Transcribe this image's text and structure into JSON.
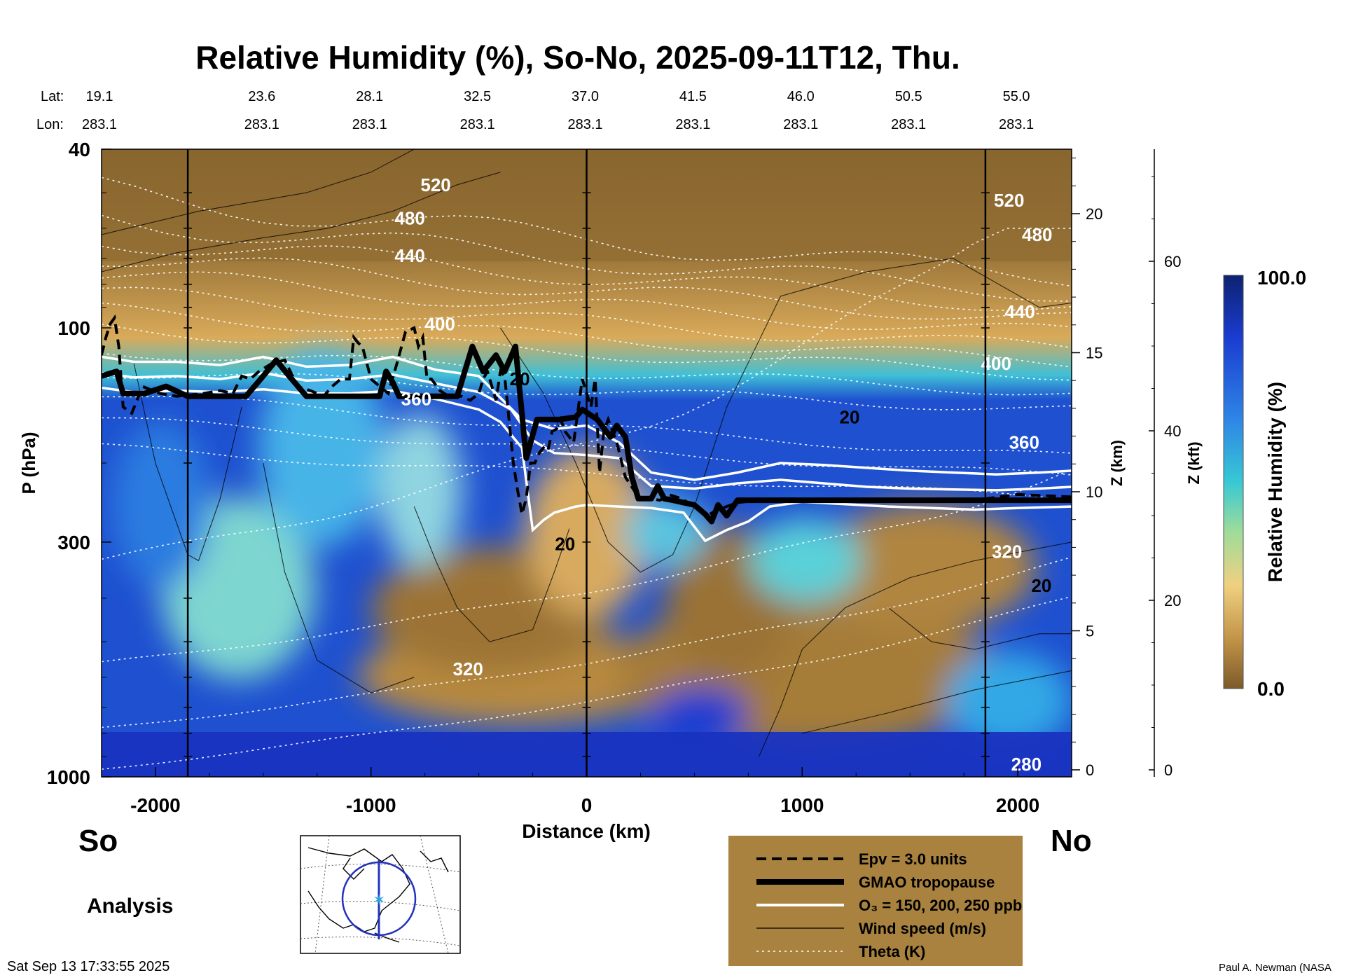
{
  "chart_data": {
    "type": "heatmap",
    "title": "Relative Humidity (%), So-No, 2025-09-11T12, Thu.",
    "xlabel": "Distance (km)",
    "ylabel": "P (hPa)",
    "xlim": [
      -2250,
      2250
    ],
    "ylim": [
      1000,
      40
    ],
    "x_ticks": [
      -2000,
      -1000,
      0,
      1000,
      2000
    ],
    "y_ticks": [
      {
        "value": 1000,
        "label": "1000"
      },
      {
        "value": 300,
        "label": "300"
      },
      {
        "value": 100,
        "label": "100"
      },
      {
        "value": 40,
        "label": "40"
      }
    ],
    "z_km_label": "Z (km)",
    "z_km_ticks": [
      {
        "value": 0,
        "label": "0"
      },
      {
        "value": 5,
        "label": "5"
      },
      {
        "value": 10,
        "label": "10"
      },
      {
        "value": 15,
        "label": "15"
      },
      {
        "value": 20,
        "label": "20"
      }
    ],
    "z_kft_label": "Z (kft)",
    "z_kft_ticks": [
      {
        "value": 0,
        "label": "0"
      },
      {
        "value": 20,
        "label": "20"
      },
      {
        "value": 40,
        "label": "40"
      },
      {
        "value": 60,
        "label": "60"
      }
    ],
    "lat_label": "Lat:",
    "lon_label": "Lon:",
    "stations": [
      {
        "distance": -2000,
        "lat": "19.1",
        "lon": "283.1"
      },
      {
        "distance": -1500,
        "lat": "23.6",
        "lon": "283.1"
      },
      {
        "distance": -1000,
        "lat": "28.1",
        "lon": "283.1"
      },
      {
        "distance": -500,
        "lat": "32.5",
        "lon": "283.1"
      },
      {
        "distance": 0,
        "lat": "37.0",
        "lon": "283.1"
      },
      {
        "distance": 500,
        "lat": "41.5",
        "lon": "283.1"
      },
      {
        "distance": 1000,
        "lat": "46.0",
        "lon": "283.1"
      },
      {
        "distance": 1500,
        "lat": "50.5",
        "lon": "283.1"
      },
      {
        "distance": 2000,
        "lat": "55.0",
        "lon": "283.1"
      }
    ],
    "vertical_lines_km": [
      -1850,
      0,
      1850
    ],
    "colorbar": {
      "label": "Relative Humidity (%)",
      "min": "0.0",
      "max": "100.0"
    },
    "theta_labels": [
      {
        "label": "520",
        "x": -700,
        "p": 48
      },
      {
        "label": "480",
        "x": -820,
        "p": 57
      },
      {
        "label": "440",
        "x": -820,
        "p": 69
      },
      {
        "label": "400",
        "x": -680,
        "p": 98
      },
      {
        "label": "360",
        "x": -790,
        "p": 144
      },
      {
        "label": "320",
        "x": -550,
        "p": 575
      },
      {
        "label": "520",
        "x": 1960,
        "p": 52
      },
      {
        "label": "480",
        "x": 2090,
        "p": 62
      },
      {
        "label": "440",
        "x": 2010,
        "p": 92
      },
      {
        "label": "400",
        "x": 1900,
        "p": 120
      },
      {
        "label": "360",
        "x": 2030,
        "p": 180
      },
      {
        "label": "320",
        "x": 1950,
        "p": 315
      },
      {
        "label": "280",
        "x": 2040,
        "p": 937
      }
    ],
    "wind_labels": [
      {
        "label": "20",
        "x": -310,
        "p": 130
      },
      {
        "label": "20",
        "x": 1220,
        "p": 158
      },
      {
        "label": "20",
        "x": -100,
        "p": 303
      },
      {
        "label": "20",
        "x": 2110,
        "p": 375
      }
    ],
    "tropopause": {
      "x": [
        -2250,
        -2180,
        -2150,
        -2050,
        -1950,
        -1850,
        -1700,
        -1580,
        -1500,
        -1440,
        -1380,
        -1300,
        -1100,
        -960,
        -930,
        -900,
        -870,
        -800,
        -600,
        -530,
        -480,
        -420,
        -380,
        -330,
        -280,
        -230,
        -130,
        -50,
        -20,
        50,
        110,
        140,
        180,
        210,
        240,
        300,
        330,
        360,
        400,
        450,
        500,
        550,
        580,
        610,
        650,
        700,
        800,
        1000,
        1400,
        1800,
        2250
      ],
      "p": [
        128,
        125,
        140,
        140,
        135,
        142,
        142,
        142,
        128,
        118,
        128,
        142,
        142,
        142,
        125,
        132,
        142,
        142,
        142,
        110,
        125,
        115,
        125,
        110,
        195,
        160,
        160,
        158,
        152,
        160,
        175,
        165,
        175,
        215,
        240,
        240,
        225,
        240,
        242,
        245,
        248,
        260,
        270,
        248,
        262,
        242,
        242,
        242,
        242,
        242,
        242
      ]
    },
    "epv_line": {
      "x": [
        -2250,
        -2230,
        -2210,
        -2190,
        -2170,
        -2150,
        -2110,
        -2060,
        -1980,
        -1900,
        -1780,
        -1700,
        -1640,
        -1600,
        -1560,
        -1520,
        -1460,
        -1400,
        -1340,
        -1280,
        -1220,
        -1180,
        -1140,
        -1100,
        -1080,
        -1060,
        -1040,
        -1000,
        -960,
        -920,
        -880,
        -840,
        -800,
        -780,
        -760,
        -740,
        -720,
        -680,
        -640,
        -580,
        -540,
        -500,
        -480,
        -460,
        -420,
        -400,
        -380,
        -360,
        -340,
        -320,
        -300,
        -280,
        -260,
        -240,
        -220,
        -200,
        -180,
        -160,
        -140,
        -120,
        -100,
        -60,
        -20,
        20,
        40,
        60,
        80,
        100,
        140,
        180,
        220,
        260,
        300,
        340,
        380,
        440,
        500,
        540,
        560,
        600,
        700,
        800,
        1000,
        1400,
        1800,
        2000,
        2250
      ],
      "p": [
        115,
        105,
        98,
        95,
        110,
        150,
        155,
        135,
        140,
        142,
        140,
        138,
        140,
        128,
        130,
        125,
        120,
        118,
        135,
        138,
        142,
        135,
        130,
        130,
        105,
        108,
        110,
        130,
        135,
        140,
        120,
        102,
        100,
        110,
        105,
        130,
        130,
        138,
        142,
        142,
        145,
        140,
        130,
        125,
        145,
        125,
        128,
        160,
        200,
        230,
        260,
        240,
        200,
        200,
        190,
        185,
        188,
        170,
        168,
        160,
        170,
        180,
        130,
        150,
        130,
        210,
        170,
        160,
        180,
        215,
        230,
        240,
        240,
        242,
        235,
        240,
        250,
        258,
        262,
        255,
        245,
        242,
        242,
        242,
        242,
        235,
        238
      ]
    },
    "ozone_lines": [
      {
        "name": "150 ppb",
        "x": [
          -2250,
          -2100,
          -1900,
          -1700,
          -1500,
          -1300,
          -1100,
          -900,
          -700,
          -500,
          -300,
          -150,
          0,
          150,
          300,
          500,
          700,
          900,
          1100,
          1300,
          1500,
          1700,
          1900,
          2100,
          2250
        ],
        "p": [
          116,
          119,
          119,
          121,
          116,
          122,
          121,
          116,
          124,
          128,
          160,
          168,
          165,
          180,
          210,
          218,
          210,
          200,
          202,
          205,
          208,
          210,
          212,
          210,
          208
        ]
      },
      {
        "name": "200 ppb",
        "x": [
          -2250,
          -2100,
          -1900,
          -1700,
          -1500,
          -1300,
          -1100,
          -900,
          -700,
          -500,
          -350,
          -250,
          -150,
          0,
          150,
          300,
          500,
          700,
          900,
          1100,
          1300,
          1500,
          1700,
          1900,
          2100,
          2250
        ],
        "p": [
          126,
          129,
          128,
          130,
          126,
          131,
          130,
          127,
          133,
          139,
          152,
          178,
          190,
          192,
          195,
          225,
          228,
          222,
          218,
          222,
          226,
          228,
          229,
          230,
          228,
          226
        ]
      },
      {
        "name": "250 ppb",
        "x": [
          -2250,
          -2100,
          -1900,
          -1700,
          -1500,
          -1300,
          -1100,
          -900,
          -700,
          -500,
          -400,
          -300,
          -250,
          -200,
          -150,
          -50,
          0,
          150,
          300,
          450,
          550,
          650,
          750,
          850,
          1000,
          1200,
          1400,
          1600,
          1800,
          2000,
          2250
        ],
        "p": [
          136,
          139,
          138,
          139,
          137,
          140,
          140,
          138,
          144,
          152,
          162,
          185,
          282,
          268,
          258,
          250,
          248,
          250,
          252,
          258,
          298,
          282,
          270,
          250,
          244,
          247,
          250,
          252,
          254,
          252,
          250
        ]
      }
    ],
    "legend": [
      {
        "style": "dashed",
        "label": "Epv = 3.0 units"
      },
      {
        "style": "thick",
        "label": "GMAO tropopause"
      },
      {
        "style": "white",
        "label": "O₃ = 150, 200, 250 ppb"
      },
      {
        "style": "thin",
        "label": "Wind speed (m/s)"
      },
      {
        "style": "dotted",
        "label": "Theta (K)"
      }
    ]
  },
  "labels": {
    "south": "So",
    "north": "No",
    "analysis": "Analysis",
    "timestamp": "Sat Sep 13 17:33:55 2025",
    "credit": "Paul A. Newman (NASA"
  },
  "colors": {
    "moist": "#0d2a9a",
    "dry": "#82602c",
    "legend_bg": "#a8823e",
    "map_circle": "#2233bb"
  }
}
